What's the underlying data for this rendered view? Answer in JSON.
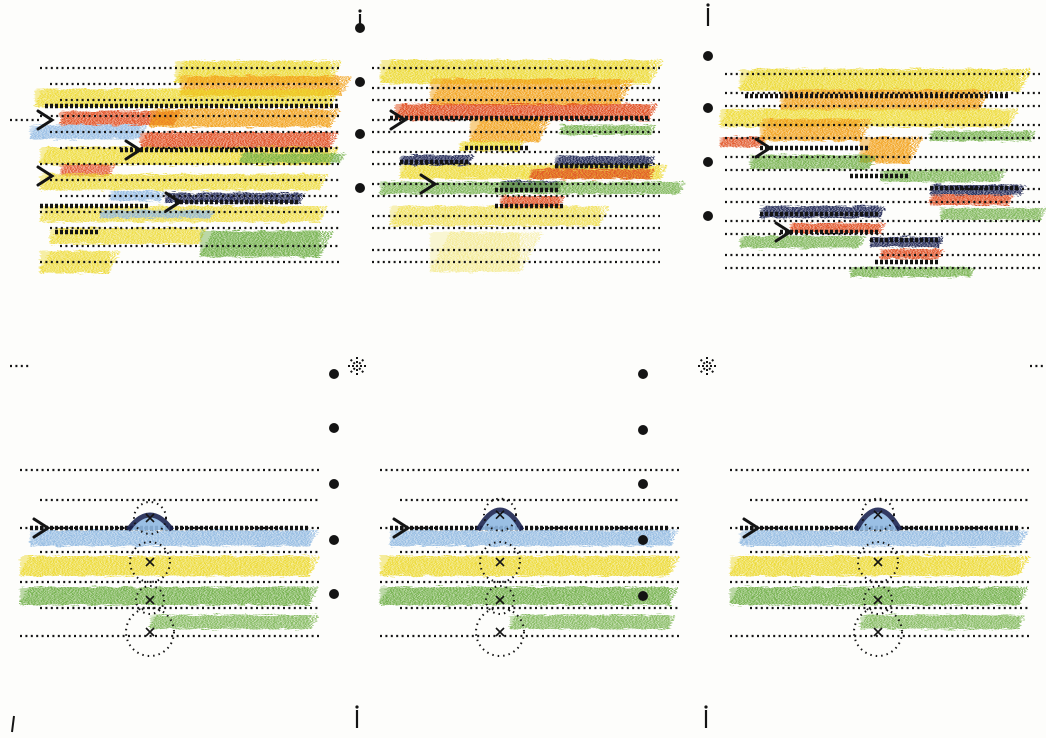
{
  "diagram": {
    "kind": "hand-drawn hatched pencil sketch",
    "colors": {
      "paper": "#fdfdfb",
      "ink": "#141414",
      "yellow": "#ecd82a",
      "orange": "#f2a21c",
      "red": "#e04a1c",
      "green": "#6fae45",
      "light_blue": "#8fb8e2",
      "navy": "#1c2552"
    },
    "panels": [
      {
        "name": "upper-sketch",
        "groups": 3,
        "description_marks": [
          "arrows",
          "dotted-lines",
          "dot-dividers"
        ]
      },
      {
        "name": "lower-sketch",
        "groups": 3,
        "description_marks": [
          "arrows",
          "dotted-lines",
          "dot-dividers",
          "dotted-circles"
        ]
      }
    ]
  }
}
